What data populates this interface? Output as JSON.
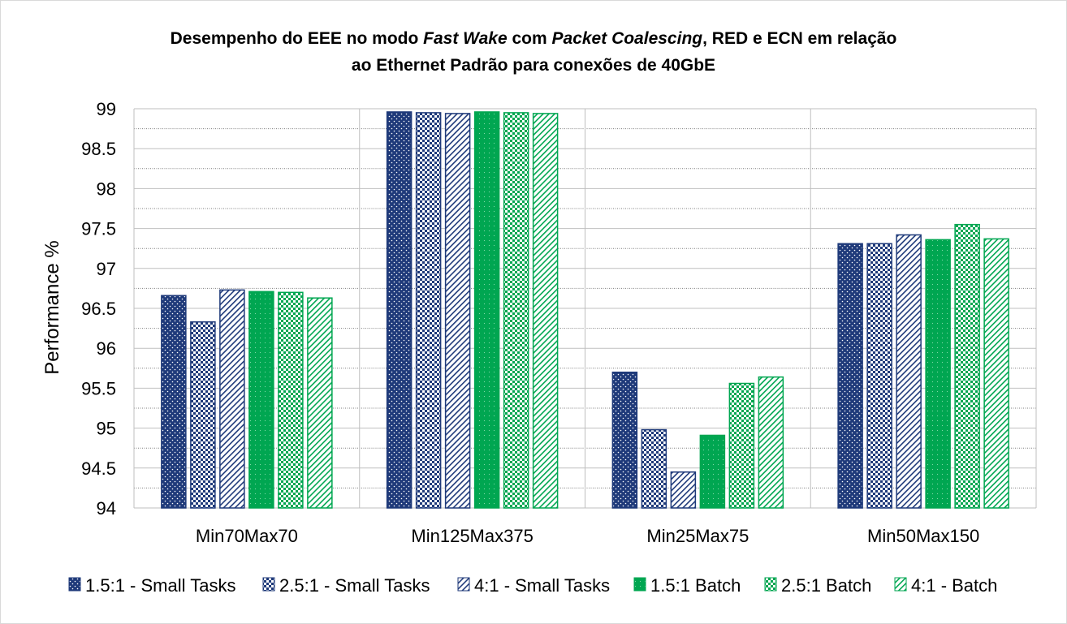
{
  "chart_data": {
    "type": "bar",
    "title": {
      "line1": [
        {
          "text": "Desempenho do EEE no modo ",
          "italic": false
        },
        {
          "text": "Fast Wake",
          "italic": true
        },
        {
          "text": " com ",
          "italic": false
        },
        {
          "text": "Packet Coalescing",
          "italic": true
        },
        {
          "text": ", RED e ECN em relação",
          "italic": false
        }
      ],
      "line2": "ao Ethernet Padrão para conexões de 40GbE"
    },
    "ylabel": "Performance %",
    "xlabel": "",
    "ylim": [
      94,
      99
    ],
    "yticks": [
      "94",
      "94.5",
      "95",
      "95.5",
      "96",
      "96.5",
      "97",
      "97.5",
      "98",
      "98.5",
      "99"
    ],
    "grid": true,
    "legend_position": "bottom",
    "categories": [
      "Min70Max70",
      "Min125Max375",
      "Min25Max75",
      "Min50Max150"
    ],
    "series": [
      {
        "name": "1.5:1 - Small Tasks",
        "color": "#1f3a7a",
        "pattern": "dots-on-navy",
        "values": [
          96.66,
          98.96,
          95.7,
          97.31
        ]
      },
      {
        "name": "2.5:1 - Small Tasks",
        "color": "#1f3a7a",
        "pattern": "checker-navy",
        "values": [
          96.33,
          98.95,
          94.98,
          97.31
        ]
      },
      {
        "name": "4:1 - Small Tasks",
        "color": "#1f3a7a",
        "pattern": "diagonal-navy",
        "values": [
          96.73,
          98.94,
          94.45,
          97.42
        ]
      },
      {
        "name": "1.5:1 Batch",
        "color": "#00a651",
        "pattern": "dots-on-green",
        "values": [
          96.71,
          98.96,
          94.91,
          97.36
        ]
      },
      {
        "name": "2.5:1 Batch",
        "color": "#00a651",
        "pattern": "checker-green",
        "values": [
          96.7,
          98.95,
          95.56,
          97.55
        ]
      },
      {
        "name": "4:1 - Batch",
        "color": "#00a651",
        "pattern": "diagonal-green",
        "values": [
          96.63,
          98.94,
          95.64,
          97.37
        ]
      }
    ]
  }
}
